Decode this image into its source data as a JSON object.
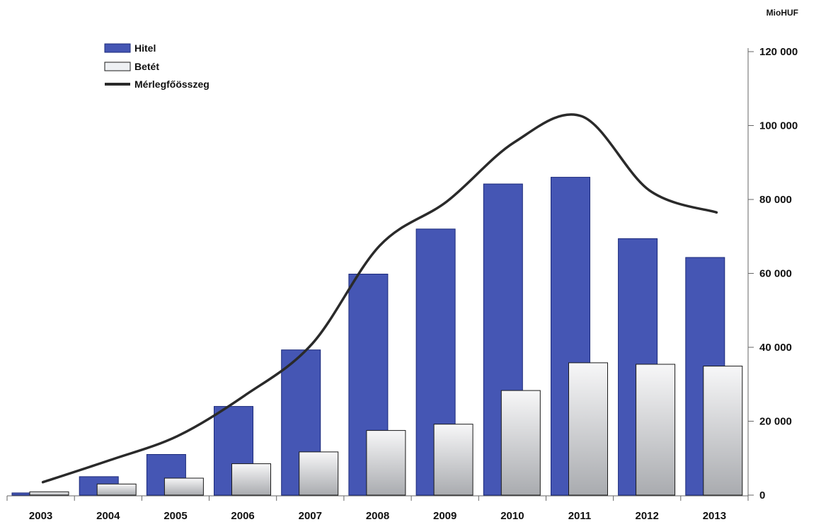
{
  "chart_data": {
    "type": "bar",
    "unit": "MioHUF",
    "categories": [
      "2003",
      "2004",
      "2005",
      "2006",
      "2007",
      "2008",
      "2009",
      "2010",
      "2011",
      "2012",
      "2013"
    ],
    "series": [
      {
        "name": "Hitel",
        "kind": "bar",
        "color": "#4556b4",
        "values": [
          600,
          5000,
          11000,
          24000,
          39300,
          59800,
          72000,
          84200,
          86000,
          69400,
          64300
        ]
      },
      {
        "name": "Betét",
        "kind": "bar",
        "color": "#d4d6da",
        "values": [
          900,
          3000,
          4600,
          8500,
          11700,
          17500,
          19200,
          28300,
          35800,
          35400,
          34900
        ]
      },
      {
        "name": "Mérlegfőösszeg",
        "kind": "line",
        "color": "#2a2a2a",
        "values": [
          3500,
          9500,
          16000,
          27000,
          41000,
          67500,
          79500,
          95500,
          102500,
          82500,
          76500
        ]
      }
    ],
    "y_axis": {
      "position": "right",
      "ylim": [
        0,
        120000
      ],
      "ticks": [
        0,
        20000,
        40000,
        60000,
        80000,
        100000,
        120000
      ],
      "tick_labels": [
        "0",
        "20 000",
        "40 000",
        "60 000",
        "80 000",
        "100 000",
        "120 000"
      ]
    },
    "legend_position": "top-left",
    "grid": false
  }
}
